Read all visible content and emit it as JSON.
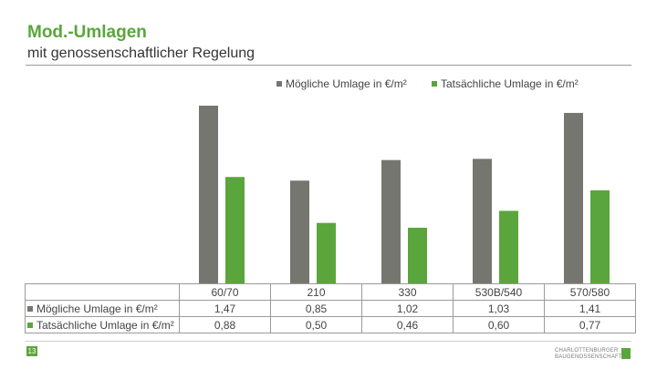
{
  "header": {
    "title": "Mod.-Umlagen",
    "subtitle": "mit genossenschaftlicher Regelung"
  },
  "chart_data": {
    "type": "bar",
    "categories": [
      "60/70",
      "210",
      "330",
      "530B/540",
      "570/580"
    ],
    "series": [
      {
        "name": "Mögliche Umlage in €/m²",
        "values": [
          1.47,
          0.85,
          1.02,
          1.03,
          1.41
        ],
        "color": "#767670"
      },
      {
        "name": "Tatsächliche Umlage in €/m²",
        "values": [
          0.88,
          0.5,
          0.46,
          0.6,
          0.77
        ],
        "color": "#5aa63c"
      }
    ],
    "table_values": [
      [
        "1,47",
        "0,85",
        "1,02",
        "1,03",
        "1,41"
      ],
      [
        "0,88",
        "0,50",
        "0,46",
        "0,60",
        "0,77"
      ]
    ],
    "ylim": [
      0,
      1.5
    ],
    "legend_position": "top",
    "grid": false
  },
  "footer": {
    "page_number": "13",
    "logo_line1": "CHARLOTTENBURGER",
    "logo_line2": "BAUGENOSSENSCHAFT"
  }
}
